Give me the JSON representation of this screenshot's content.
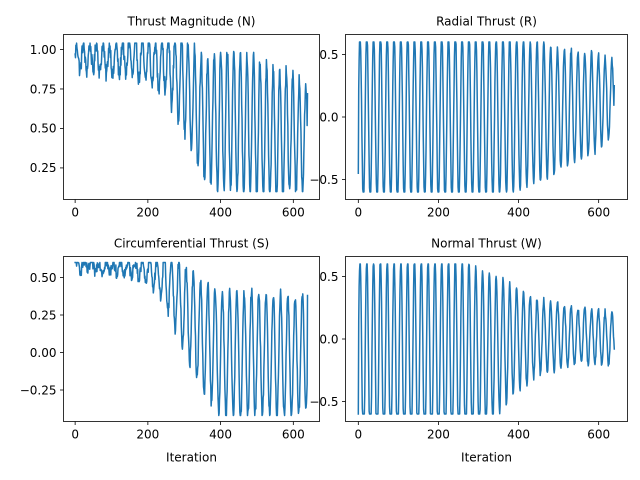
{
  "chart_data": [
    {
      "type": "line",
      "title": "Thrust Magnitude (N)",
      "xlabel": "",
      "ylabel": "",
      "xlim": [
        -32,
        672
      ],
      "ylim": [
        0.05,
        1.095
      ],
      "xticks": [
        0,
        200,
        400,
        600
      ],
      "yticks": [
        0.25,
        0.5,
        0.75,
        1.0
      ],
      "ytick_labels": [
        "0.25",
        "0.50",
        "0.75",
        "1.00"
      ],
      "grid": false,
      "color": "#1f77b4",
      "series": [
        {
          "keypoints": [
            [
              0,
              0.95
            ],
            [
              60,
              0.95
            ],
            [
              100,
              0.93
            ],
            [
              150,
              0.95
            ],
            [
              200,
              0.92
            ],
            [
              250,
              0.9
            ],
            [
              300,
              0.78
            ],
            [
              330,
              0.65
            ],
            [
              360,
              0.55
            ],
            [
              400,
              0.55
            ],
            [
              450,
              0.55
            ],
            [
              500,
              0.5
            ],
            [
              550,
              0.45
            ],
            [
              600,
              0.48
            ],
            [
              635,
              0.42
            ]
          ],
          "osc_keypoints": [
            [
              0,
              0.08
            ],
            [
              100,
              0.1
            ],
            [
              200,
              0.13
            ],
            [
              250,
              0.18
            ],
            [
              300,
              0.3
            ],
            [
              350,
              0.38
            ],
            [
              400,
              0.44
            ],
            [
              500,
              0.44
            ],
            [
              600,
              0.38
            ],
            [
              635,
              0.35
            ]
          ],
          "period": 18,
          "clip": [
            0.1,
            1.04
          ],
          "noise": 0.05,
          "n_points": 640,
          "last_value": 0.72
        }
      ]
    },
    {
      "type": "line",
      "title": "Radial Thrust (R)",
      "xlabel": "",
      "ylabel": "",
      "xlim": [
        -32,
        672
      ],
      "ylim": [
        -0.66,
        0.66
      ],
      "xticks": [
        0,
        200,
        400,
        600
      ],
      "yticks": [
        -0.5,
        0.0,
        0.5
      ],
      "ytick_labels": [
        "−0.5",
        "0.0",
        "0.5"
      ],
      "grid": false,
      "color": "#1f77b4",
      "series": [
        {
          "keypoints": [
            [
              0,
              0.0
            ],
            [
              300,
              0.0
            ],
            [
              400,
              0.02
            ],
            [
              500,
              0.06
            ],
            [
              600,
              0.12
            ],
            [
              635,
              0.15
            ]
          ],
          "osc_keypoints": [
            [
              0,
              0.7
            ],
            [
              300,
              0.7
            ],
            [
              400,
              0.62
            ],
            [
              500,
              0.5
            ],
            [
              600,
              0.38
            ],
            [
              635,
              0.3
            ]
          ],
          "period": 17,
          "clip": [
            -0.6,
            0.6
          ],
          "noise": 0.03,
          "n_points": 640,
          "first_value": -0.45,
          "last_value": 0.25
        }
      ]
    },
    {
      "type": "line",
      "title": "Circumferential Thrust (S)",
      "xlabel": "Iteration",
      "ylabel": "",
      "xlim": [
        -32,
        672
      ],
      "ylim": [
        -0.46,
        0.64
      ],
      "xticks": [
        0,
        200,
        400,
        600
      ],
      "yticks": [
        -0.25,
        0.0,
        0.25,
        0.5
      ],
      "ytick_labels": [
        "−0.25",
        "0.00",
        "0.25",
        "0.50"
      ],
      "grid": false,
      "color": "#1f77b4",
      "series": [
        {
          "keypoints": [
            [
              0,
              0.58
            ],
            [
              100,
              0.57
            ],
            [
              200,
              0.55
            ],
            [
              250,
              0.48
            ],
            [
              300,
              0.3
            ],
            [
              350,
              0.1
            ],
            [
              400,
              0.0
            ],
            [
              450,
              -0.02
            ],
            [
              500,
              0.0
            ],
            [
              600,
              -0.03
            ],
            [
              635,
              0.0
            ]
          ],
          "osc_keypoints": [
            [
              0,
              0.03
            ],
            [
              150,
              0.04
            ],
            [
              220,
              0.1
            ],
            [
              270,
              0.22
            ],
            [
              320,
              0.32
            ],
            [
              380,
              0.4
            ],
            [
              450,
              0.42
            ],
            [
              600,
              0.4
            ],
            [
              635,
              0.38
            ]
          ],
          "period": 20,
          "clip": [
            -0.42,
            0.6
          ],
          "noise": 0.04,
          "n_points": 640,
          "last_value": 0.38
        }
      ]
    },
    {
      "type": "line",
      "title": "Normal Thrust (W)",
      "xlabel": "Iteration",
      "ylabel": "",
      "xlim": [
        -32,
        672
      ],
      "ylim": [
        -0.66,
        0.66
      ],
      "xticks": [
        0,
        200,
        400,
        600
      ],
      "yticks": [
        -0.5,
        0.0,
        0.5
      ],
      "ytick_labels": [
        "−0.5",
        "0.0",
        "0.5"
      ],
      "grid": false,
      "color": "#1f77b4",
      "series": [
        {
          "keypoints": [
            [
              0,
              -0.15
            ],
            [
              200,
              -0.15
            ],
            [
              300,
              -0.12
            ],
            [
              350,
              -0.05
            ],
            [
              400,
              0.0
            ],
            [
              500,
              0.03
            ],
            [
              600,
              0.02
            ],
            [
              635,
              0.0
            ]
          ],
          "osc_keypoints": [
            [
              0,
              0.8
            ],
            [
              250,
              0.8
            ],
            [
              320,
              0.65
            ],
            [
              380,
              0.45
            ],
            [
              450,
              0.3
            ],
            [
              550,
              0.22
            ],
            [
              635,
              0.2
            ]
          ],
          "period": 17,
          "clip": [
            -0.6,
            0.6
          ],
          "noise": 0.03,
          "n_points": 640,
          "first_value": -0.6,
          "last_value": -0.08
        }
      ]
    }
  ]
}
